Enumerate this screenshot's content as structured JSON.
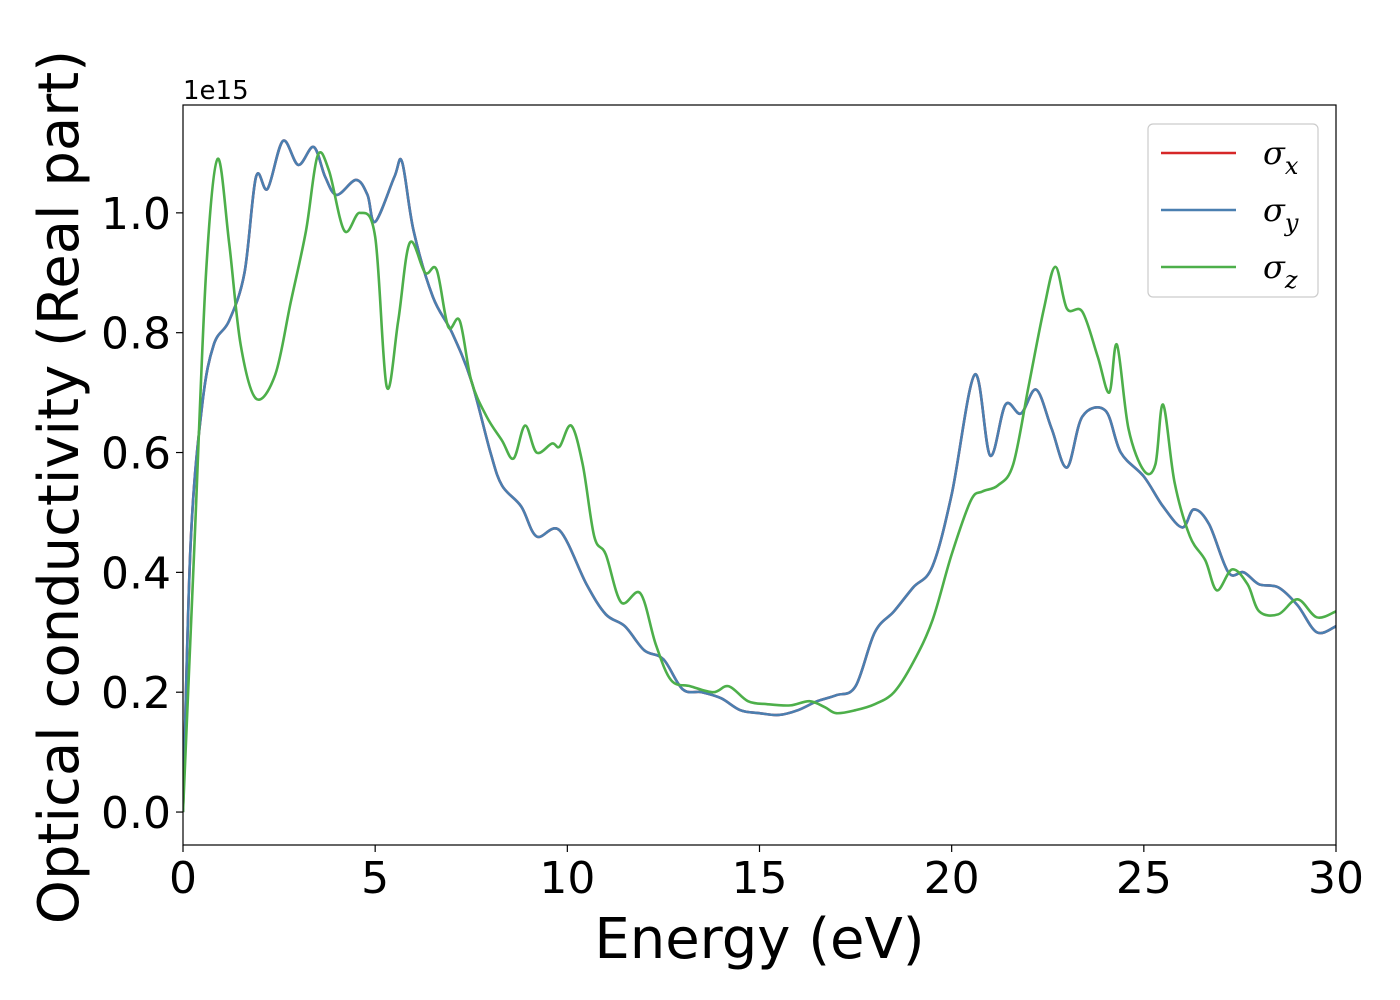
{
  "chart_data": {
    "type": "line",
    "xlabel": "Energy (eV)",
    "ylabel": "Optical conductivity (Real part)",
    "y_offset_label": "1e15",
    "y_multiplier": 1000000000000000.0,
    "xlim": [
      0,
      30
    ],
    "ylim": [
      -0.055,
      1.18
    ],
    "x_ticks": [
      0,
      5,
      10,
      15,
      20,
      25,
      30
    ],
    "x_tick_labels": [
      "0",
      "5",
      "10",
      "15",
      "20",
      "25",
      "30"
    ],
    "y_ticks": [
      0.0,
      0.2,
      0.4,
      0.6,
      0.8,
      1.0
    ],
    "y_tick_labels": [
      "0.0",
      "0.2",
      "0.4",
      "0.6",
      "0.8",
      "1.0"
    ],
    "grid": false,
    "legend_position": "top-right",
    "series": [
      {
        "name": "σ",
        "subscript": "x",
        "color": "#d62728",
        "points": [
          [
            0,
            0
          ],
          [
            0.2,
            0.45
          ],
          [
            0.5,
            0.68
          ],
          [
            0.8,
            0.78
          ],
          [
            1.2,
            0.82
          ],
          [
            1.6,
            0.9
          ],
          [
            1.9,
            1.06
          ],
          [
            2.2,
            1.04
          ],
          [
            2.6,
            1.12
          ],
          [
            3.0,
            1.08
          ],
          [
            3.4,
            1.11
          ],
          [
            3.7,
            1.06
          ],
          [
            4.0,
            1.03
          ],
          [
            4.5,
            1.055
          ],
          [
            4.8,
            1.03
          ],
          [
            5.0,
            0.985
          ],
          [
            5.5,
            1.06
          ],
          [
            5.7,
            1.085
          ],
          [
            6.0,
            0.97
          ],
          [
            6.5,
            0.86
          ],
          [
            7.0,
            0.8
          ],
          [
            7.5,
            0.72
          ],
          [
            8.0,
            0.6
          ],
          [
            8.3,
            0.545
          ],
          [
            8.8,
            0.51
          ],
          [
            9.2,
            0.46
          ],
          [
            9.8,
            0.47
          ],
          [
            10.5,
            0.38
          ],
          [
            11.0,
            0.33
          ],
          [
            11.5,
            0.31
          ],
          [
            12.0,
            0.27
          ],
          [
            12.5,
            0.255
          ],
          [
            13.0,
            0.205
          ],
          [
            13.5,
            0.2
          ],
          [
            14.0,
            0.19
          ],
          [
            14.5,
            0.17
          ],
          [
            15.0,
            0.165
          ],
          [
            15.5,
            0.162
          ],
          [
            16.0,
            0.17
          ],
          [
            16.5,
            0.185
          ],
          [
            17.0,
            0.195
          ],
          [
            17.5,
            0.21
          ],
          [
            18.0,
            0.3
          ],
          [
            18.5,
            0.335
          ],
          [
            19.0,
            0.375
          ],
          [
            19.5,
            0.41
          ],
          [
            20.0,
            0.53
          ],
          [
            20.6,
            0.73
          ],
          [
            21.0,
            0.595
          ],
          [
            21.4,
            0.68
          ],
          [
            21.8,
            0.665
          ],
          [
            22.2,
            0.705
          ],
          [
            22.6,
            0.64
          ],
          [
            23.0,
            0.575
          ],
          [
            23.4,
            0.66
          ],
          [
            24.0,
            0.67
          ],
          [
            24.4,
            0.6
          ],
          [
            25.0,
            0.56
          ],
          [
            25.5,
            0.51
          ],
          [
            26.0,
            0.475
          ],
          [
            26.3,
            0.505
          ],
          [
            26.7,
            0.48
          ],
          [
            27.2,
            0.4
          ],
          [
            27.6,
            0.4
          ],
          [
            28.0,
            0.38
          ],
          [
            28.5,
            0.375
          ],
          [
            29.0,
            0.345
          ],
          [
            29.5,
            0.3
          ],
          [
            30.0,
            0.31
          ]
        ]
      },
      {
        "name": "σ",
        "subscript": "y",
        "color": "#4a7fb0",
        "points": [
          [
            0,
            0
          ],
          [
            0.2,
            0.45
          ],
          [
            0.5,
            0.68
          ],
          [
            0.8,
            0.78
          ],
          [
            1.2,
            0.82
          ],
          [
            1.6,
            0.9
          ],
          [
            1.9,
            1.06
          ],
          [
            2.2,
            1.04
          ],
          [
            2.6,
            1.12
          ],
          [
            3.0,
            1.08
          ],
          [
            3.4,
            1.11
          ],
          [
            3.7,
            1.06
          ],
          [
            4.0,
            1.03
          ],
          [
            4.5,
            1.055
          ],
          [
            4.8,
            1.03
          ],
          [
            5.0,
            0.985
          ],
          [
            5.5,
            1.06
          ],
          [
            5.7,
            1.085
          ],
          [
            6.0,
            0.97
          ],
          [
            6.5,
            0.86
          ],
          [
            7.0,
            0.8
          ],
          [
            7.5,
            0.72
          ],
          [
            8.0,
            0.6
          ],
          [
            8.3,
            0.545
          ],
          [
            8.8,
            0.51
          ],
          [
            9.2,
            0.46
          ],
          [
            9.8,
            0.47
          ],
          [
            10.5,
            0.38
          ],
          [
            11.0,
            0.33
          ],
          [
            11.5,
            0.31
          ],
          [
            12.0,
            0.27
          ],
          [
            12.5,
            0.255
          ],
          [
            13.0,
            0.205
          ],
          [
            13.5,
            0.2
          ],
          [
            14.0,
            0.19
          ],
          [
            14.5,
            0.17
          ],
          [
            15.0,
            0.165
          ],
          [
            15.5,
            0.162
          ],
          [
            16.0,
            0.17
          ],
          [
            16.5,
            0.185
          ],
          [
            17.0,
            0.195
          ],
          [
            17.5,
            0.21
          ],
          [
            18.0,
            0.3
          ],
          [
            18.5,
            0.335
          ],
          [
            19.0,
            0.375
          ],
          [
            19.5,
            0.41
          ],
          [
            20.0,
            0.53
          ],
          [
            20.6,
            0.73
          ],
          [
            21.0,
            0.595
          ],
          [
            21.4,
            0.68
          ],
          [
            21.8,
            0.665
          ],
          [
            22.2,
            0.705
          ],
          [
            22.6,
            0.64
          ],
          [
            23.0,
            0.575
          ],
          [
            23.4,
            0.66
          ],
          [
            24.0,
            0.67
          ],
          [
            24.4,
            0.6
          ],
          [
            25.0,
            0.56
          ],
          [
            25.5,
            0.51
          ],
          [
            26.0,
            0.475
          ],
          [
            26.3,
            0.505
          ],
          [
            26.7,
            0.48
          ],
          [
            27.2,
            0.4
          ],
          [
            27.6,
            0.4
          ],
          [
            28.0,
            0.38
          ],
          [
            28.5,
            0.375
          ],
          [
            29.0,
            0.345
          ],
          [
            29.5,
            0.3
          ],
          [
            30.0,
            0.31
          ]
        ]
      },
      {
        "name": "σ",
        "subscript": "z",
        "color": "#4daf4a",
        "points": [
          [
            0,
            0
          ],
          [
            0.3,
            0.45
          ],
          [
            0.6,
            0.9
          ],
          [
            0.9,
            1.09
          ],
          [
            1.2,
            0.95
          ],
          [
            1.5,
            0.78
          ],
          [
            1.9,
            0.69
          ],
          [
            2.4,
            0.73
          ],
          [
            2.8,
            0.85
          ],
          [
            3.2,
            0.97
          ],
          [
            3.5,
            1.095
          ],
          [
            3.8,
            1.07
          ],
          [
            4.2,
            0.97
          ],
          [
            4.6,
            1.0
          ],
          [
            5.0,
            0.96
          ],
          [
            5.3,
            0.71
          ],
          [
            5.6,
            0.82
          ],
          [
            5.9,
            0.95
          ],
          [
            6.3,
            0.9
          ],
          [
            6.6,
            0.905
          ],
          [
            6.9,
            0.81
          ],
          [
            7.2,
            0.82
          ],
          [
            7.5,
            0.72
          ],
          [
            7.9,
            0.66
          ],
          [
            8.3,
            0.62
          ],
          [
            8.6,
            0.59
          ],
          [
            8.9,
            0.645
          ],
          [
            9.2,
            0.6
          ],
          [
            9.6,
            0.615
          ],
          [
            9.8,
            0.61
          ],
          [
            10.1,
            0.645
          ],
          [
            10.4,
            0.58
          ],
          [
            10.7,
            0.46
          ],
          [
            11.0,
            0.43
          ],
          [
            11.4,
            0.35
          ],
          [
            11.9,
            0.365
          ],
          [
            12.3,
            0.28
          ],
          [
            12.7,
            0.22
          ],
          [
            13.2,
            0.21
          ],
          [
            13.8,
            0.2
          ],
          [
            14.2,
            0.21
          ],
          [
            14.7,
            0.185
          ],
          [
            15.2,
            0.18
          ],
          [
            15.8,
            0.178
          ],
          [
            16.3,
            0.185
          ],
          [
            16.7,
            0.175
          ],
          [
            17.0,
            0.165
          ],
          [
            17.5,
            0.17
          ],
          [
            18.0,
            0.18
          ],
          [
            18.5,
            0.2
          ],
          [
            19.0,
            0.25
          ],
          [
            19.5,
            0.32
          ],
          [
            20.0,
            0.43
          ],
          [
            20.5,
            0.52
          ],
          [
            20.8,
            0.535
          ],
          [
            21.2,
            0.545
          ],
          [
            21.6,
            0.58
          ],
          [
            22.0,
            0.71
          ],
          [
            22.4,
            0.84
          ],
          [
            22.7,
            0.91
          ],
          [
            23.0,
            0.84
          ],
          [
            23.4,
            0.835
          ],
          [
            23.8,
            0.76
          ],
          [
            24.1,
            0.7
          ],
          [
            24.3,
            0.78
          ],
          [
            24.6,
            0.64
          ],
          [
            25.0,
            0.57
          ],
          [
            25.3,
            0.58
          ],
          [
            25.5,
            0.68
          ],
          [
            25.8,
            0.55
          ],
          [
            26.2,
            0.46
          ],
          [
            26.6,
            0.42
          ],
          [
            26.9,
            0.37
          ],
          [
            27.3,
            0.405
          ],
          [
            27.7,
            0.38
          ],
          [
            28.0,
            0.335
          ],
          [
            28.5,
            0.33
          ],
          [
            29.0,
            0.355
          ],
          [
            29.5,
            0.325
          ],
          [
            30.0,
            0.335
          ]
        ]
      }
    ]
  }
}
